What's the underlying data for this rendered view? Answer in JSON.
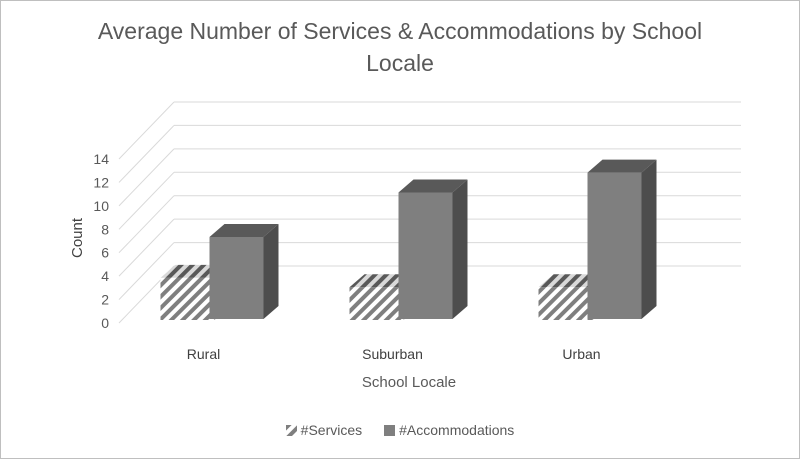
{
  "chart_data": {
    "type": "bar",
    "title": "Average Number of Services & Accommodations by School Locale",
    "xlabel": "School Locale",
    "ylabel": "Count",
    "categories": [
      "Rural",
      "Suburban",
      "Urban"
    ],
    "series": [
      {
        "name": "#Services",
        "values": [
          3.6,
          2.8,
          2.8
        ],
        "color": "#7f7f7f",
        "pattern": "diagonal-hatch"
      },
      {
        "name": "#Accommodations",
        "values": [
          7.0,
          10.8,
          12.5
        ],
        "color": "#7f7f7f"
      }
    ],
    "ylim": [
      0,
      14
    ],
    "yticks": [
      "0",
      "2",
      "4",
      "6",
      "8",
      "10",
      "12",
      "14"
    ],
    "grid": true,
    "legend": "bottom",
    "style": "3d-clustered-column"
  }
}
